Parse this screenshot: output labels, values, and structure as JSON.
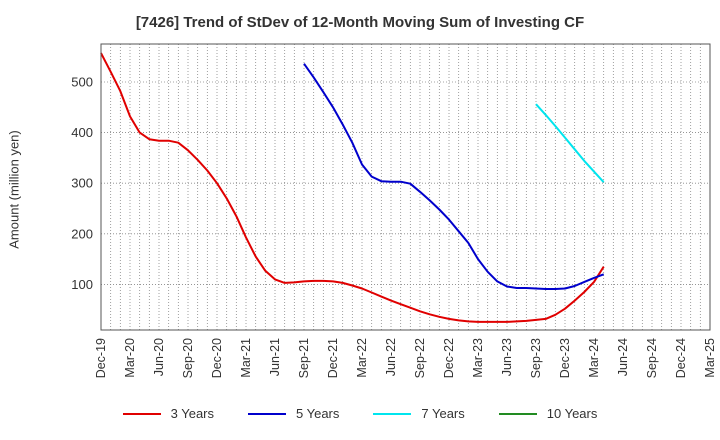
{
  "chart_data": {
    "type": "line",
    "title": "[7426]  Trend of StDev of 12-Month Moving Sum of Investing CF",
    "xlabel": "",
    "ylabel": "Amount (million yen)",
    "x_tick_labels": [
      "Dec-19",
      "Mar-20",
      "Jun-20",
      "Sep-20",
      "Dec-20",
      "Mar-21",
      "Jun-21",
      "Sep-21",
      "Dec-21",
      "Mar-22",
      "Jun-22",
      "Sep-22",
      "Dec-22",
      "Mar-23",
      "Jun-23",
      "Sep-23",
      "Dec-23",
      "Mar-24",
      "Jun-24",
      "Sep-24",
      "Dec-24",
      "Mar-25"
    ],
    "y_ticks": [
      100,
      200,
      300,
      400,
      500
    ],
    "ylim": [
      10,
      575
    ],
    "x_months": [
      "2019-12",
      "2020-01",
      "2020-02",
      "2020-03",
      "2020-04",
      "2020-05",
      "2020-06",
      "2020-07",
      "2020-08",
      "2020-09",
      "2020-10",
      "2020-11",
      "2020-12",
      "2021-01",
      "2021-02",
      "2021-03",
      "2021-04",
      "2021-05",
      "2021-06",
      "2021-07",
      "2021-08",
      "2021-09",
      "2021-10",
      "2021-11",
      "2021-12",
      "2022-01",
      "2022-02",
      "2022-03",
      "2022-04",
      "2022-05",
      "2022-06",
      "2022-07",
      "2022-08",
      "2022-09",
      "2022-10",
      "2022-11",
      "2022-12",
      "2023-01",
      "2023-02",
      "2023-03",
      "2023-04",
      "2023-05",
      "2023-06",
      "2023-07",
      "2023-08",
      "2023-09",
      "2023-10",
      "2023-11",
      "2023-12",
      "2024-01",
      "2024-02",
      "2024-03",
      "2024-04",
      "2024-05",
      "2024-06",
      "2024-07",
      "2024-08",
      "2024-09",
      "2024-10",
      "2024-11",
      "2024-12",
      "2025-01",
      "2025-02",
      "2025-03"
    ],
    "grid": true,
    "legend_position": "bottom",
    "series": [
      {
        "name": "3 Years",
        "color": "#e00000",
        "values": [
          557,
          520,
          482,
          432,
          400,
          387,
          384,
          384,
          380,
          365,
          346,
          325,
          300,
          270,
          235,
          193,
          155,
          127,
          110,
          103,
          104,
          106,
          107,
          107,
          106,
          103,
          98,
          92,
          84,
          76,
          68,
          61,
          54,
          47,
          41,
          36,
          32,
          29,
          27,
          26,
          26,
          26,
          26,
          27,
          28,
          30,
          32,
          40,
          52,
          68,
          85,
          105,
          135,
          null,
          null,
          null,
          null,
          null,
          null,
          null,
          null,
          null,
          null,
          null
        ]
      },
      {
        "name": "5 Years",
        "color": "#0000cc",
        "values": [
          null,
          null,
          null,
          null,
          null,
          null,
          null,
          null,
          null,
          null,
          null,
          null,
          null,
          null,
          null,
          null,
          null,
          null,
          null,
          null,
          null,
          536,
          509,
          480,
          450,
          416,
          380,
          337,
          313,
          304,
          303,
          303,
          299,
          283,
          266,
          248,
          228,
          205,
          182,
          150,
          125,
          106,
          96,
          93,
          93,
          92,
          91,
          91,
          92,
          97,
          105,
          113,
          120,
          null,
          null,
          null,
          null,
          null,
          null,
          null,
          null,
          null,
          null,
          null
        ]
      },
      {
        "name": "7 Years",
        "color": "#00e5ee",
        "values": [
          null,
          null,
          null,
          null,
          null,
          null,
          null,
          null,
          null,
          null,
          null,
          null,
          null,
          null,
          null,
          null,
          null,
          null,
          null,
          null,
          null,
          null,
          null,
          null,
          null,
          null,
          null,
          null,
          null,
          null,
          null,
          null,
          null,
          null,
          null,
          null,
          null,
          null,
          null,
          null,
          null,
          null,
          null,
          null,
          null,
          456,
          435,
          413,
          390,
          367,
          344,
          323,
          302,
          null,
          null,
          null,
          null,
          null,
          null,
          null,
          null,
          null,
          null,
          null
        ]
      },
      {
        "name": "10 Years",
        "color": "#228b22",
        "values": [
          null,
          null,
          null,
          null,
          null,
          null,
          null,
          null,
          null,
          null,
          null,
          null,
          null,
          null,
          null,
          null,
          null,
          null,
          null,
          null,
          null,
          null,
          null,
          null,
          null,
          null,
          null,
          null,
          null,
          null,
          null,
          null,
          null,
          null,
          null,
          null,
          null,
          null,
          null,
          null,
          null,
          null,
          null,
          null,
          null,
          null,
          null,
          null,
          null,
          null,
          null,
          null,
          null,
          null,
          null,
          null,
          null,
          null,
          null,
          null,
          null,
          null,
          null,
          null
        ]
      }
    ]
  }
}
